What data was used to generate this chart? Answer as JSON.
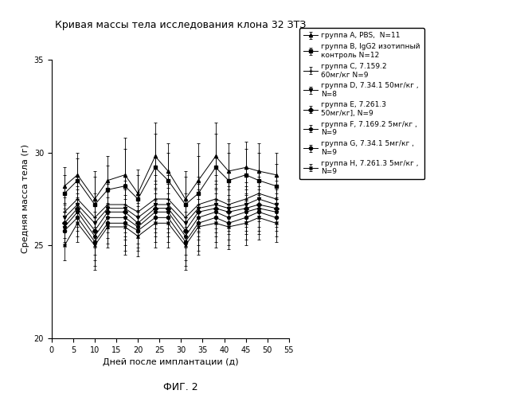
{
  "title": "Кривая массы тела исследования клона 32 ЗТЗ",
  "xlabel": "Дней после имплантации (д)",
  "ylabel": "Средняя масса тела (г)",
  "figtext": "ФИГ. 2",
  "xlim": [
    0,
    55
  ],
  "ylim": [
    20,
    35
  ],
  "xticks": [
    0,
    5,
    10,
    15,
    20,
    25,
    30,
    35,
    40,
    45,
    50,
    55
  ],
  "yticks": [
    20,
    25,
    30,
    35
  ],
  "x": [
    3,
    6,
    10,
    13,
    17,
    20,
    24,
    27,
    31,
    34,
    38,
    41,
    45,
    48,
    52
  ],
  "series": [
    {
      "label": "группа A, PBS,  N=11",
      "y": [
        28.2,
        28.8,
        27.5,
        28.5,
        28.8,
        27.8,
        29.8,
        29.0,
        27.5,
        28.5,
        29.8,
        29.0,
        29.2,
        29.0,
        28.8
      ],
      "yerr": [
        1.0,
        1.2,
        1.5,
        1.3,
        2.0,
        1.3,
        1.8,
        1.5,
        1.5,
        2.0,
        1.8,
        1.5,
        1.4,
        1.5,
        1.2
      ],
      "marker": "^",
      "linestyle": "-"
    },
    {
      "label": "группа B, IgG2 изотипный\nконтроль N=12",
      "y": [
        27.8,
        28.5,
        27.2,
        28.0,
        28.2,
        27.5,
        29.2,
        28.5,
        27.2,
        27.8,
        29.2,
        28.5,
        28.8,
        28.5,
        28.2
      ],
      "yerr": [
        1.0,
        1.2,
        1.5,
        1.3,
        2.0,
        1.3,
        1.8,
        1.5,
        1.5,
        2.0,
        1.8,
        1.5,
        1.4,
        1.5,
        1.2
      ],
      "marker": "s",
      "linestyle": "-"
    },
    {
      "label": "группа C, 7.159.2\n60мг/кг N=9",
      "y": [
        26.8,
        27.5,
        26.5,
        27.2,
        27.2,
        26.8,
        27.5,
        27.5,
        26.5,
        27.2,
        27.5,
        27.2,
        27.5,
        27.8,
        27.5
      ],
      "yerr": [
        0.8,
        1.0,
        1.3,
        1.1,
        1.5,
        1.1,
        1.3,
        1.3,
        1.3,
        1.5,
        1.3,
        1.2,
        1.2,
        1.2,
        1.0
      ],
      "marker": "+",
      "linestyle": "-"
    },
    {
      "label": "группа D, 7.34.1 50мг/кг ,\nN=8",
      "y": [
        26.5,
        27.2,
        26.2,
        27.0,
        27.0,
        26.5,
        27.2,
        27.2,
        26.2,
        27.0,
        27.2,
        27.0,
        27.2,
        27.5,
        27.2
      ],
      "yerr": [
        0.8,
        1.0,
        1.3,
        1.1,
        1.5,
        1.1,
        1.3,
        1.3,
        1.3,
        1.5,
        1.3,
        1.2,
        1.2,
        1.2,
        1.0
      ],
      "marker": "v",
      "linestyle": "-"
    },
    {
      "label": "группа E, 7.261.3\n50мг/кг], N=9",
      "y": [
        26.2,
        27.0,
        25.8,
        26.8,
        26.8,
        26.2,
        27.0,
        27.0,
        25.8,
        26.8,
        27.0,
        26.8,
        27.0,
        27.2,
        27.0
      ],
      "yerr": [
        0.8,
        1.0,
        1.3,
        1.1,
        1.5,
        1.1,
        1.3,
        1.3,
        1.3,
        1.5,
        1.3,
        1.2,
        1.2,
        1.2,
        1.0
      ],
      "marker": "D",
      "linestyle": "-"
    },
    {
      "label": "группа F, 7.169.2 5мг/кг ,\nN=9",
      "y": [
        26.0,
        26.8,
        25.5,
        26.5,
        26.5,
        26.0,
        26.8,
        26.8,
        25.5,
        26.5,
        26.8,
        26.5,
        26.8,
        27.0,
        26.8
      ],
      "yerr": [
        0.8,
        1.0,
        1.3,
        1.1,
        1.5,
        1.1,
        1.3,
        1.3,
        1.3,
        1.5,
        1.3,
        1.2,
        1.2,
        1.2,
        1.0
      ],
      "marker": "p",
      "linestyle": "-"
    },
    {
      "label": "группа G, 7.34.1 5мг/кг ,\nN=9",
      "y": [
        25.8,
        26.5,
        25.2,
        26.2,
        26.2,
        25.8,
        26.5,
        26.5,
        25.2,
        26.2,
        26.5,
        26.2,
        26.5,
        26.8,
        26.5
      ],
      "yerr": [
        0.8,
        1.0,
        1.3,
        1.1,
        1.5,
        1.1,
        1.3,
        1.3,
        1.3,
        1.5,
        1.3,
        1.2,
        1.2,
        1.2,
        1.0
      ],
      "marker": "o",
      "linestyle": "-"
    },
    {
      "label": "группа H, 7.261.3 5мг/кг ,\nN=9",
      "y": [
        25.0,
        26.2,
        25.0,
        26.0,
        26.0,
        25.5,
        26.2,
        26.2,
        25.0,
        26.0,
        26.2,
        26.0,
        26.2,
        26.5,
        26.2
      ],
      "yerr": [
        0.8,
        1.0,
        1.3,
        1.1,
        1.5,
        1.1,
        1.3,
        1.3,
        1.3,
        1.5,
        1.3,
        1.2,
        1.2,
        1.2,
        1.0
      ],
      "marker": "x",
      "linestyle": "-"
    }
  ],
  "color": "#000000",
  "title_fontsize": 9,
  "axis_label_fontsize": 8,
  "legend_fontsize": 6.5,
  "tick_fontsize": 7,
  "figtext_fontsize": 9,
  "background_color": "#ffffff",
  "capsize": 1.5,
  "markersize": 3,
  "linewidth": 0.7,
  "elinewidth": 0.6
}
